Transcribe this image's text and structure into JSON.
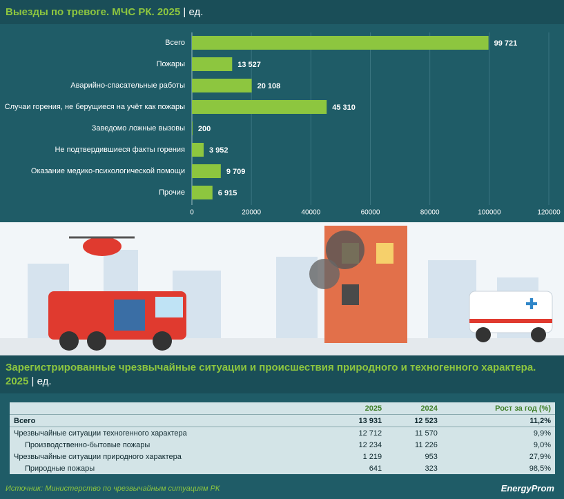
{
  "chart_data": {
    "type": "hbar",
    "title": "Выезды по тревоге. МЧС РК. 2025",
    "unit": "| ед.",
    "categories": [
      "Всего",
      "Пожары",
      "Аварийно-спасательные работы",
      "Случаи горения, не берущиеся на учёт как пожары",
      "Заведомо ложные вызовы",
      "Не подтвердившиеся факты горения",
      "Оказание медико-психологической помощи",
      "Прочие"
    ],
    "values": [
      99721,
      13527,
      20108,
      45310,
      200,
      3952,
      9709,
      6915
    ],
    "value_labels": [
      "99 721",
      "13 527",
      "20 108",
      "45 310",
      "200",
      "3 952",
      "9 709",
      "6 915"
    ],
    "color": "#8dc63f",
    "xlim": [
      0,
      120000
    ],
    "xticks": [
      0,
      20000,
      40000,
      60000,
      80000,
      100000,
      120000
    ],
    "grid": true
  },
  "section2": {
    "title": "Зарегистрированные чрезвычайные ситуации и происшествия природного и техногенного характера. 2025",
    "unit": "| ед."
  },
  "table": {
    "header": [
      "2025",
      "2024",
      "Рост за год (%)"
    ],
    "rows": [
      [
        "Всего",
        "13 931",
        "12 523",
        "11,2%"
      ],
      [
        "Чрезвычайные ситуации техногенного характера",
        "12 712",
        "11 570",
        "9,9%"
      ],
      [
        "Производственно-бытовые пожары",
        "12 234",
        "11 226",
        "9,0%"
      ],
      [
        "Чрезвычайные ситуации природного характера",
        "1 219",
        "953",
        "27,9%"
      ],
      [
        "Природные пожары",
        "641",
        "323",
        "98,5%"
      ]
    ]
  },
  "source": "Источник: Министерство по чрезвычайным ситуациям РК",
  "logo": "EnergyProm"
}
